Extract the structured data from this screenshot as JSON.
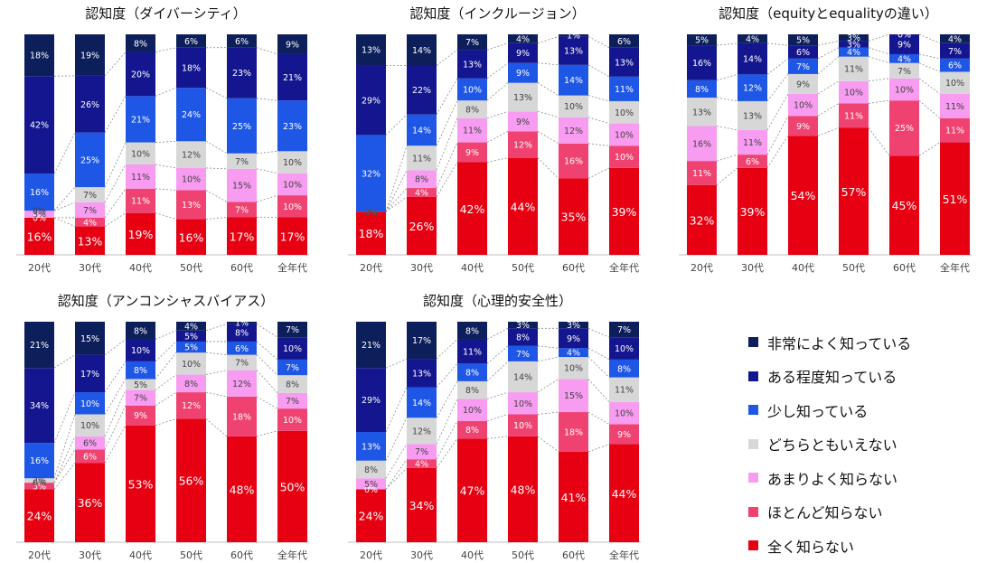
{
  "series": [
    {
      "name": "全く知らない",
      "color": "#e60012"
    },
    {
      "name": "ほとんど知らない",
      "color": "#ef4270"
    },
    {
      "name": "あまりよく知らない",
      "color": "#f79cf0"
    },
    {
      "name": "どちらともいえない",
      "color": "#d7d7d7"
    },
    {
      "name": "少し知っている",
      "color": "#1e56e6"
    },
    {
      "name": "ある程度知っている",
      "color": "#14168f"
    },
    {
      "name": "非常によく知っている",
      "color": "#0d1f5b"
    }
  ],
  "legend": [
    "非常によく知っている",
    "ある程度知っている",
    "少し知っている",
    "どちらともいえない",
    "あまりよく知らない",
    "ほとんど知らない",
    "全く知らない"
  ],
  "chart_data": [
    {
      "type": "bar",
      "stacked": true,
      "title": "認知度（ダイバーシティ）",
      "categories": [
        "20代",
        "30代",
        "40代",
        "50代",
        "60代",
        "全年代"
      ],
      "values": [
        [
          16,
          0,
          3,
          0,
          16,
          42,
          18
        ],
        [
          13,
          4,
          7,
          7,
          25,
          26,
          19
        ],
        [
          19,
          11,
          11,
          10,
          21,
          20,
          8
        ],
        [
          16,
          13,
          10,
          12,
          24,
          18,
          6
        ],
        [
          17,
          7,
          15,
          7,
          25,
          23,
          6
        ],
        [
          17,
          10,
          10,
          10,
          23,
          21,
          9
        ]
      ],
      "labels": [
        [
          "16%",
          "0%",
          "3%",
          "0%",
          "16%",
          "42%",
          "18%"
        ],
        [
          "13%",
          "4%",
          "7%",
          "7%",
          "25%",
          "26%",
          "19%"
        ],
        [
          "19%",
          "11%",
          "11%",
          "10%",
          "21%",
          "20%",
          "8%"
        ],
        [
          "16%",
          "13%",
          "10%",
          "12%",
          "24%",
          "18%",
          "6%"
        ],
        [
          "17%",
          "7%",
          "15%",
          "7%",
          "25%",
          "23%",
          "6%"
        ],
        [
          "17%",
          "10%",
          "10%",
          "10%",
          "23%",
          "21%",
          "9%"
        ]
      ],
      "ylim": [
        0,
        100
      ]
    },
    {
      "type": "bar",
      "stacked": true,
      "title": "認知度（インクルージョン）",
      "categories": [
        "20代",
        "30代",
        "40代",
        "50代",
        "60代",
        "全年代"
      ],
      "values": [
        [
          18,
          0,
          0,
          0,
          32,
          29,
          13
        ],
        [
          26,
          4,
          8,
          11,
          14,
          22,
          14
        ],
        [
          42,
          9,
          11,
          8,
          10,
          13,
          7
        ],
        [
          44,
          12,
          9,
          13,
          9,
          9,
          4
        ],
        [
          35,
          16,
          12,
          10,
          14,
          13,
          1
        ],
        [
          39,
          10,
          10,
          10,
          11,
          13,
          6
        ]
      ],
      "labels": [
        [
          "18%",
          "0%",
          "0%",
          "0%",
          "32%",
          "29%",
          "13%"
        ],
        [
          "26%",
          "4%",
          "8%",
          "11%",
          "14%",
          "22%",
          "14%"
        ],
        [
          "42%",
          "9%",
          "11%",
          "8%",
          "10%",
          "13%",
          "7%"
        ],
        [
          "44%",
          "12%",
          "9%",
          "13%",
          "9%",
          "9%",
          "4%"
        ],
        [
          "35%",
          "16%",
          "12%",
          "10%",
          "14%",
          "13%",
          "1%"
        ],
        [
          "39%",
          "10%",
          "10%",
          "10%",
          "11%",
          "13%",
          "6%"
        ]
      ],
      "ylim": [
        0,
        100
      ]
    },
    {
      "type": "bar",
      "stacked": true,
      "title": "認知度（equityとequalityの違い）",
      "categories": [
        "20代",
        "30代",
        "40代",
        "50代",
        "60代",
        "全年代"
      ],
      "values": [
        [
          32,
          11,
          16,
          13,
          8,
          16,
          5
        ],
        [
          39,
          6,
          11,
          13,
          12,
          14,
          4
        ],
        [
          54,
          9,
          10,
          9,
          7,
          6,
          5
        ],
        [
          57,
          11,
          10,
          11,
          4,
          3,
          3
        ],
        [
          45,
          25,
          10,
          7,
          4,
          9,
          0
        ],
        [
          51,
          11,
          11,
          10,
          6,
          7,
          4
        ]
      ],
      "labels": [
        [
          "32%",
          "11%",
          "16%",
          "13%",
          "8%",
          "16%",
          "5%"
        ],
        [
          "39%",
          "6%",
          "11%",
          "13%",
          "12%",
          "14%",
          "4%"
        ],
        [
          "54%",
          "9%",
          "10%",
          "9%",
          "7%",
          "6%",
          "5%"
        ],
        [
          "57%",
          "11%",
          "10%",
          "11%",
          "4%",
          "3%",
          "3%"
        ],
        [
          "45%",
          "25%",
          "10%",
          "7%",
          "4%",
          "9%",
          "0%"
        ],
        [
          "51%",
          "11%",
          "11%",
          "10%",
          "6%",
          "7%",
          "4%"
        ]
      ],
      "ylim": [
        0,
        100
      ]
    },
    {
      "type": "bar",
      "stacked": true,
      "title": "認知度（アンコンシャスバイアス）",
      "categories": [
        "20代",
        "30代",
        "40代",
        "50代",
        "60代",
        "全年代"
      ],
      "values": [
        [
          24,
          3,
          0,
          2,
          16,
          34,
          21
        ],
        [
          36,
          6,
          6,
          10,
          10,
          17,
          15
        ],
        [
          53,
          9,
          7,
          5,
          8,
          10,
          8
        ],
        [
          56,
          12,
          8,
          10,
          5,
          5,
          4
        ],
        [
          48,
          18,
          12,
          7,
          6,
          8,
          1
        ],
        [
          50,
          10,
          7,
          8,
          7,
          10,
          7
        ]
      ],
      "labels": [
        [
          "24%",
          "3%",
          "0%",
          "2%",
          "16%",
          "34%",
          "21%"
        ],
        [
          "36%",
          "6%",
          "6%",
          "10%",
          "10%",
          "17%",
          "15%"
        ],
        [
          "53%",
          "9%",
          "7%",
          "5%",
          "8%",
          "10%",
          "8%"
        ],
        [
          "56%",
          "12%",
          "8%",
          "10%",
          "5%",
          "5%",
          "4%"
        ],
        [
          "48%",
          "18%",
          "12%",
          "7%",
          "6%",
          "8%",
          "1%"
        ],
        [
          "50%",
          "10%",
          "7%",
          "8%",
          "7%",
          "10%",
          "7%"
        ]
      ],
      "ylim": [
        0,
        100
      ]
    },
    {
      "type": "bar",
      "stacked": true,
      "title": "認知度（心理的安全性）",
      "categories": [
        "20代",
        "30代",
        "40代",
        "50代",
        "60代",
        "全年代"
      ],
      "values": [
        [
          24,
          0,
          5,
          8,
          13,
          29,
          21
        ],
        [
          34,
          4,
          7,
          12,
          14,
          13,
          17
        ],
        [
          47,
          8,
          10,
          8,
          8,
          11,
          8
        ],
        [
          48,
          10,
          10,
          14,
          7,
          8,
          3
        ],
        [
          41,
          18,
          15,
          10,
          4,
          9,
          3
        ],
        [
          44,
          9,
          10,
          11,
          8,
          10,
          7
        ]
      ],
      "labels": [
        [
          "24%",
          "0%",
          "5%",
          "8%",
          "13%",
          "29%",
          "21%"
        ],
        [
          "34%",
          "4%",
          "7%",
          "12%",
          "14%",
          "13%",
          "17%"
        ],
        [
          "47%",
          "8%",
          "10%",
          "8%",
          "8%",
          "11%",
          "8%"
        ],
        [
          "48%",
          "10%",
          "10%",
          "14%",
          "7%",
          "8%",
          "3%"
        ],
        [
          "41%",
          "18%",
          "15%",
          "10%",
          "4%",
          "9%",
          "3%"
        ],
        [
          "44%",
          "9%",
          "10%",
          "11%",
          "8%",
          "10%",
          "7%"
        ]
      ],
      "ylim": [
        0,
        100
      ]
    }
  ]
}
